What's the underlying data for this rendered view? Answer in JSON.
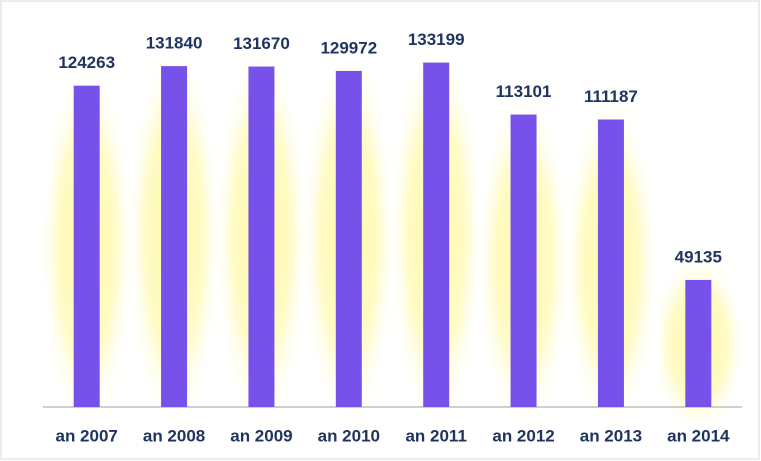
{
  "chart_data": {
    "type": "bar",
    "categories": [
      "an 2007",
      "an 2008",
      "an 2009",
      "an 2010",
      "an 2011",
      "an 2012",
      "an 2013",
      "an 2014"
    ],
    "values": [
      124263,
      131840,
      131670,
      129972,
      133199,
      113101,
      111187,
      49135
    ],
    "color": "#7652ea",
    "ylim": [
      0,
      140000
    ]
  }
}
